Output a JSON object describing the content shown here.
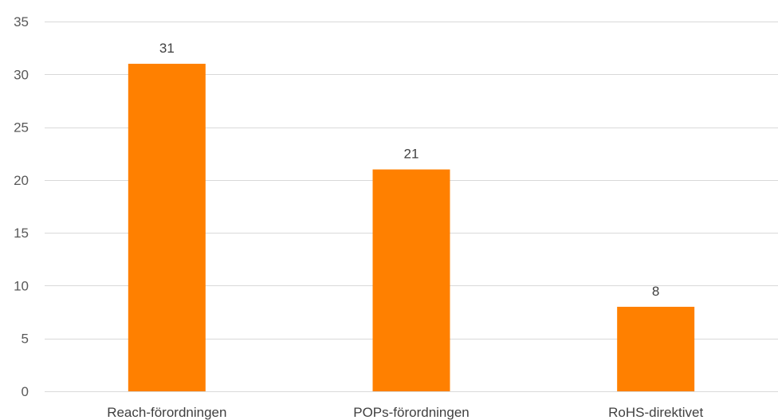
{
  "chart_data": {
    "type": "bar",
    "categories": [
      "Reach-förordningen",
      "POPs-förordningen",
      "RoHS-direktivet"
    ],
    "values": [
      31,
      21,
      8
    ],
    "data_labels": [
      "31",
      "21",
      "8"
    ],
    "ylim": [
      0,
      35
    ],
    "yticks": [
      "0",
      "5",
      "10",
      "15",
      "20",
      "25",
      "30",
      "35"
    ],
    "grid": true,
    "bar_color": "#ff8000",
    "title": "",
    "xlabel": "",
    "ylabel": ""
  }
}
